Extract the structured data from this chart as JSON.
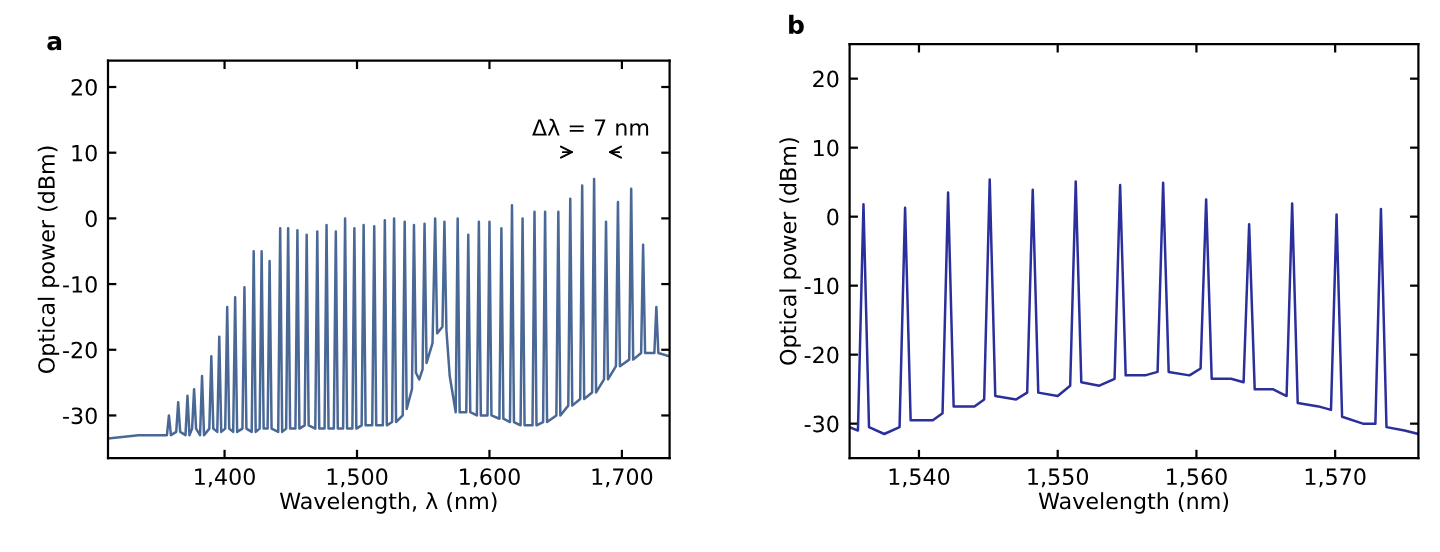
{
  "chart_data": [
    {
      "type": "line",
      "title": "a",
      "xlabel": "Wavelength, λ (nm)",
      "ylabel": "Optical power (dBm)",
      "xlim": [
        1312,
        1736
      ],
      "ylim": [
        -36.5,
        24
      ],
      "xticks": [
        {
          "value": 1400,
          "label": "1,400"
        },
        {
          "value": 1500,
          "label": "1,500"
        },
        {
          "value": 1600,
          "label": "1,600"
        },
        {
          "value": 1700,
          "label": "1,700"
        }
      ],
      "yticks": [
        -30,
        -20,
        -10,
        0,
        10,
        20
      ],
      "grid": false,
      "legend": false,
      "annotations": [
        "Δλ = 7 nm"
      ],
      "series": [
        {
          "color": "#4a6896",
          "x": [
            1312,
            1335,
            1356.5,
            1358,
            1359.5,
            1363.5,
            1365,
            1366.5,
            1370.5,
            1372,
            1373.5,
            1375.5,
            1377,
            1378.5,
            1381.5,
            1383,
            1384.5,
            1388.5,
            1390,
            1391.5,
            1394.5,
            1396,
            1397.5,
            1400.5,
            1402,
            1403.5,
            1406.5,
            1408,
            1409.5,
            1413.5,
            1415,
            1416.5,
            1420.5,
            1422,
            1423.5,
            1426.5,
            1428,
            1429.5,
            1432.5,
            1434,
            1435.5,
            1440.5,
            1442,
            1443.5,
            1446.5,
            1448,
            1449.5,
            1453.5,
            1455,
            1456.5,
            1460.5,
            1462,
            1463.5,
            1468.5,
            1470,
            1471.5,
            1475.5,
            1477,
            1478.5,
            1482.5,
            1484,
            1485.5,
            1489.5,
            1491,
            1492.5,
            1496.5,
            1498,
            1499.5,
            1503.5,
            1505,
            1506.5,
            1511.5,
            1513,
            1514.5,
            1519.5,
            1521,
            1522.5,
            1526.5,
            1528,
            1529.5,
            1534.5,
            1536,
            1537.5,
            1541.5,
            1543,
            1544.5,
            1547,
            1549.5,
            1551,
            1552.5,
            1557,
            1559,
            1560.5,
            1564.5,
            1566,
            1567.5,
            1570,
            1574.5,
            1576,
            1577.5,
            1582.5,
            1584,
            1585.5,
            1590.5,
            1592,
            1593.5,
            1598.5,
            1600,
            1601.5,
            1607.5,
            1609,
            1610.5,
            1615.5,
            1617,
            1618.5,
            1623.5,
            1625,
            1626.5,
            1632.5,
            1634,
            1635.5,
            1640.5,
            1642,
            1643.5,
            1650.5,
            1652,
            1653.5,
            1659.5,
            1661,
            1662.5,
            1668.5,
            1670,
            1671.5,
            1677.5,
            1679,
            1680.5,
            1686.5,
            1688,
            1689.5,
            1695.5,
            1697,
            1698.5,
            1705.5,
            1707,
            1708.5,
            1714.5,
            1716,
            1717.5,
            1724.5,
            1726,
            1727.5,
            1736
          ],
          "values": [
            -33.5,
            -33,
            -33,
            -30,
            -33,
            -32.5,
            -28,
            -32.5,
            -33,
            -27,
            -33,
            -32,
            -26,
            -32,
            -33,
            -24,
            -33,
            -32,
            -21,
            -32,
            -32.5,
            -18,
            -32.5,
            -32,
            -13.5,
            -32,
            -32.5,
            -12,
            -32.5,
            -32,
            -10.5,
            -32,
            -32.5,
            -5,
            -32.5,
            -32,
            -5,
            -32,
            -32,
            -6.5,
            -32,
            -32.5,
            -1.5,
            -32.5,
            -32,
            -1.5,
            -32,
            -32,
            -1.8,
            -32,
            -31.5,
            -2.5,
            -31.5,
            -32,
            -2,
            -32,
            -32,
            -1,
            -32,
            -32,
            -2,
            -32,
            -32,
            0,
            -32,
            -32,
            -1.5,
            -32,
            -31.5,
            -1,
            -31.5,
            -31.5,
            -1.2,
            -31.5,
            -31.5,
            -0.3,
            -31.5,
            -31,
            0,
            -31,
            -30,
            -0.5,
            -29,
            -26,
            -1,
            -23.5,
            -24.5,
            -23,
            -0.8,
            -22,
            -19,
            0,
            -17.5,
            -16.5,
            -0.5,
            -17,
            -24,
            -29.5,
            0,
            -29.5,
            -29.5,
            -2.5,
            -29.5,
            -30,
            -0.5,
            -30,
            -30,
            -0.5,
            -30,
            -30.5,
            -1.5,
            -30.5,
            -31,
            2,
            -31,
            -31.5,
            0,
            -31.5,
            -31.5,
            1,
            -31.5,
            -31,
            1,
            -31,
            -30,
            1,
            -30,
            -28.5,
            3,
            -28.5,
            -27.5,
            5,
            -27.5,
            -26.5,
            6,
            -26.5,
            -24.5,
            -0.5,
            -24.5,
            -22.5,
            2.5,
            -22.5,
            -21.5,
            4.5,
            -21.5,
            -20.5,
            -4,
            -20.5,
            -20.5,
            -13.5,
            -20.5,
            -21
          ]
        }
      ]
    },
    {
      "type": "line",
      "title": "b",
      "xlabel": "Wavelength (nm)",
      "ylabel": "Optical power (dBm)",
      "xlim": [
        1535,
        1576
      ],
      "ylim": [
        -35,
        25
      ],
      "xticks": [
        {
          "value": 1540,
          "label": "1,540"
        },
        {
          "value": 1550,
          "label": "1,550"
        },
        {
          "value": 1560,
          "label": "1,560"
        },
        {
          "value": 1570,
          "label": "1,570"
        }
      ],
      "yticks": [
        -30,
        -20,
        -10,
        0,
        10,
        20
      ],
      "grid": false,
      "legend": false,
      "series": [
        {
          "color": "#2b2f9c",
          "x": [
            1535,
            1535.6,
            1536,
            1536.4,
            1537.5,
            1538.6,
            1539,
            1539.4,
            1541,
            1541.7,
            1542.1,
            1542.5,
            1544,
            1544.7,
            1545.1,
            1545.5,
            1547,
            1547.8,
            1548.2,
            1548.6,
            1550,
            1550.9,
            1551.3,
            1551.7,
            1553,
            1554.1,
            1554.5,
            1554.9,
            1556.3,
            1557.2,
            1557.6,
            1558,
            1559.5,
            1560.3,
            1560.7,
            1561.1,
            1562.5,
            1563.4,
            1563.8,
            1564.2,
            1565.5,
            1566.5,
            1566.9,
            1567.3,
            1568.8,
            1569.7,
            1570.1,
            1570.5,
            1572,
            1572.9,
            1573.3,
            1573.7,
            1575,
            1576
          ],
          "values": [
            -30.5,
            -31,
            1.8,
            -30.5,
            -31.5,
            -30.5,
            1.3,
            -29.5,
            -29.5,
            -28.5,
            3.5,
            -27.5,
            -27.5,
            -26.5,
            5.4,
            -26,
            -26.5,
            -25.5,
            3.9,
            -25.5,
            -26,
            -24.5,
            5.1,
            -24,
            -24.5,
            -23.5,
            4.6,
            -23,
            -23,
            -22.5,
            4.9,
            -22.5,
            -23,
            -22,
            2.5,
            -23.5,
            -23.5,
            -24,
            -1.1,
            -25,
            -25,
            -26,
            1.9,
            -27,
            -27.5,
            -28,
            0.3,
            -29,
            -30,
            -30,
            1.1,
            -30.5,
            -31,
            -31.5
          ]
        }
      ]
    }
  ]
}
